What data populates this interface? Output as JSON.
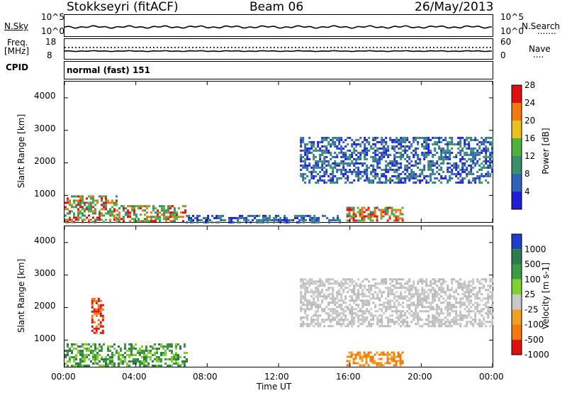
{
  "header": {
    "station": "Stokkseyri (fitACF)",
    "beam": "Beam 06",
    "date": "26/May/2013"
  },
  "summary": {
    "nsky_label": "N.Sky",
    "nsky_top": "10^5",
    "nsky_bottom": "10^0",
    "nsearch_label": "N.Search",
    "nsearch_top": "10^5",
    "nsearch_bottom": "10^0",
    "freq_label": "Freq.",
    "freq_unit": "[MHz]",
    "freq_top": "18",
    "freq_bottom": "8",
    "nave_label": "Nave",
    "nave_top": "60",
    "nave_bottom": "0",
    "cpid_label": "CPID",
    "cpid_value": "normal (fast) 151"
  },
  "chart_data": [
    {
      "type": "heatmap",
      "quantity": "Power",
      "ylabel": "Slant Range [km]",
      "yticks": [
        1000,
        2000,
        3000,
        4000
      ],
      "ylim": [
        180,
        4500
      ],
      "xlim": [
        0,
        24
      ],
      "colorbar_label": "Power [dB]",
      "colorbar_ticks": [
        "4",
        "8",
        "12",
        "16",
        "20",
        "24",
        "28"
      ],
      "colorbar_colors": [
        "#1f1fd6",
        "#2e63b8",
        "#3a8f6a",
        "#50b040",
        "#e8c020",
        "#f07a10",
        "#e01010"
      ],
      "regions": [
        {
          "t0": 0.0,
          "t1": 2.9,
          "r0": 180,
          "r1": 1000,
          "level": "high"
        },
        {
          "t0": 2.9,
          "t1": 6.8,
          "r0": 180,
          "r1": 700,
          "level": "high"
        },
        {
          "t0": 15.8,
          "t1": 19.0,
          "r0": 200,
          "r1": 650,
          "level": "high"
        },
        {
          "t0": 13.2,
          "t1": 24.0,
          "r0": 1400,
          "r1": 2800,
          "level": "low"
        },
        {
          "t0": 6.8,
          "t1": 15.5,
          "r0": 180,
          "r1": 400,
          "level": "low"
        }
      ]
    },
    {
      "type": "heatmap",
      "quantity": "Velocity",
      "ylabel": "Slant Range [km]",
      "yticks": [
        1000,
        2000,
        3000,
        4000
      ],
      "ylim": [
        180,
        4500
      ],
      "xlim": [
        0,
        24
      ],
      "xticks": [
        "00:00",
        "04:00",
        "08:00",
        "12:00",
        "16:00",
        "20:00",
        "00:00"
      ],
      "xlabel": "Time UT",
      "colorbar_label": "Velocity [m s-1]",
      "colorbar_ticks": [
        "1000",
        "500",
        "100",
        "25",
        "-25",
        "-100",
        "-500",
        "-1000"
      ],
      "colorbar_colors": [
        "#1f3fc8",
        "#2e7c4e",
        "#3a9a46",
        "#80d030",
        "#c8c8c8",
        "#f0a020",
        "#f07a10",
        "#e01010"
      ],
      "regions": [
        {
          "t0": 0.0,
          "t1": 6.8,
          "r0": 180,
          "r1": 900,
          "level": "green"
        },
        {
          "t0": 15.8,
          "t1": 19.0,
          "r0": 220,
          "r1": 650,
          "level": "orange"
        },
        {
          "t0": 13.2,
          "t1": 24.0,
          "r0": 1400,
          "r1": 2900,
          "level": "grey"
        },
        {
          "t0": 1.5,
          "t1": 2.2,
          "r0": 1200,
          "r1": 2300,
          "level": "red"
        }
      ]
    }
  ]
}
